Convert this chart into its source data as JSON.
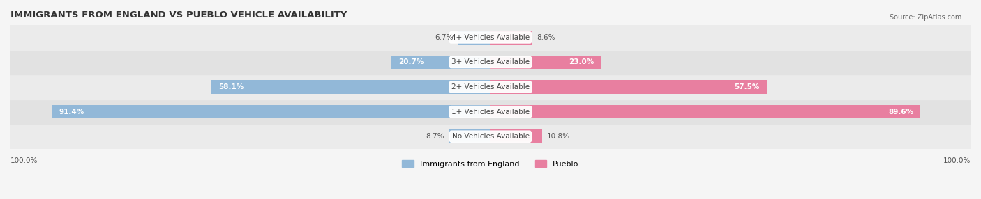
{
  "title": "IMMIGRANTS FROM ENGLAND VS PUEBLO VEHICLE AVAILABILITY",
  "source": "Source: ZipAtlas.com",
  "categories": [
    "No Vehicles Available",
    "1+ Vehicles Available",
    "2+ Vehicles Available",
    "3+ Vehicles Available",
    "4+ Vehicles Available"
  ],
  "england_values": [
    8.7,
    91.4,
    58.1,
    20.7,
    6.7
  ],
  "pueblo_values": [
    10.8,
    89.6,
    57.5,
    23.0,
    8.6
  ],
  "england_color": "#92b8d8",
  "pueblo_color": "#e87fa0",
  "england_color_dark": "#6a9fc0",
  "pueblo_color_dark": "#d05070",
  "bar_height": 0.55,
  "bg_color": "#f0f0f0",
  "row_bg_colors": [
    "#e8e8e8",
    "#e0e0e0"
  ],
  "max_value": 100.0,
  "label_fontsize": 7.5,
  "title_fontsize": 9.5,
  "category_fontsize": 7.5
}
